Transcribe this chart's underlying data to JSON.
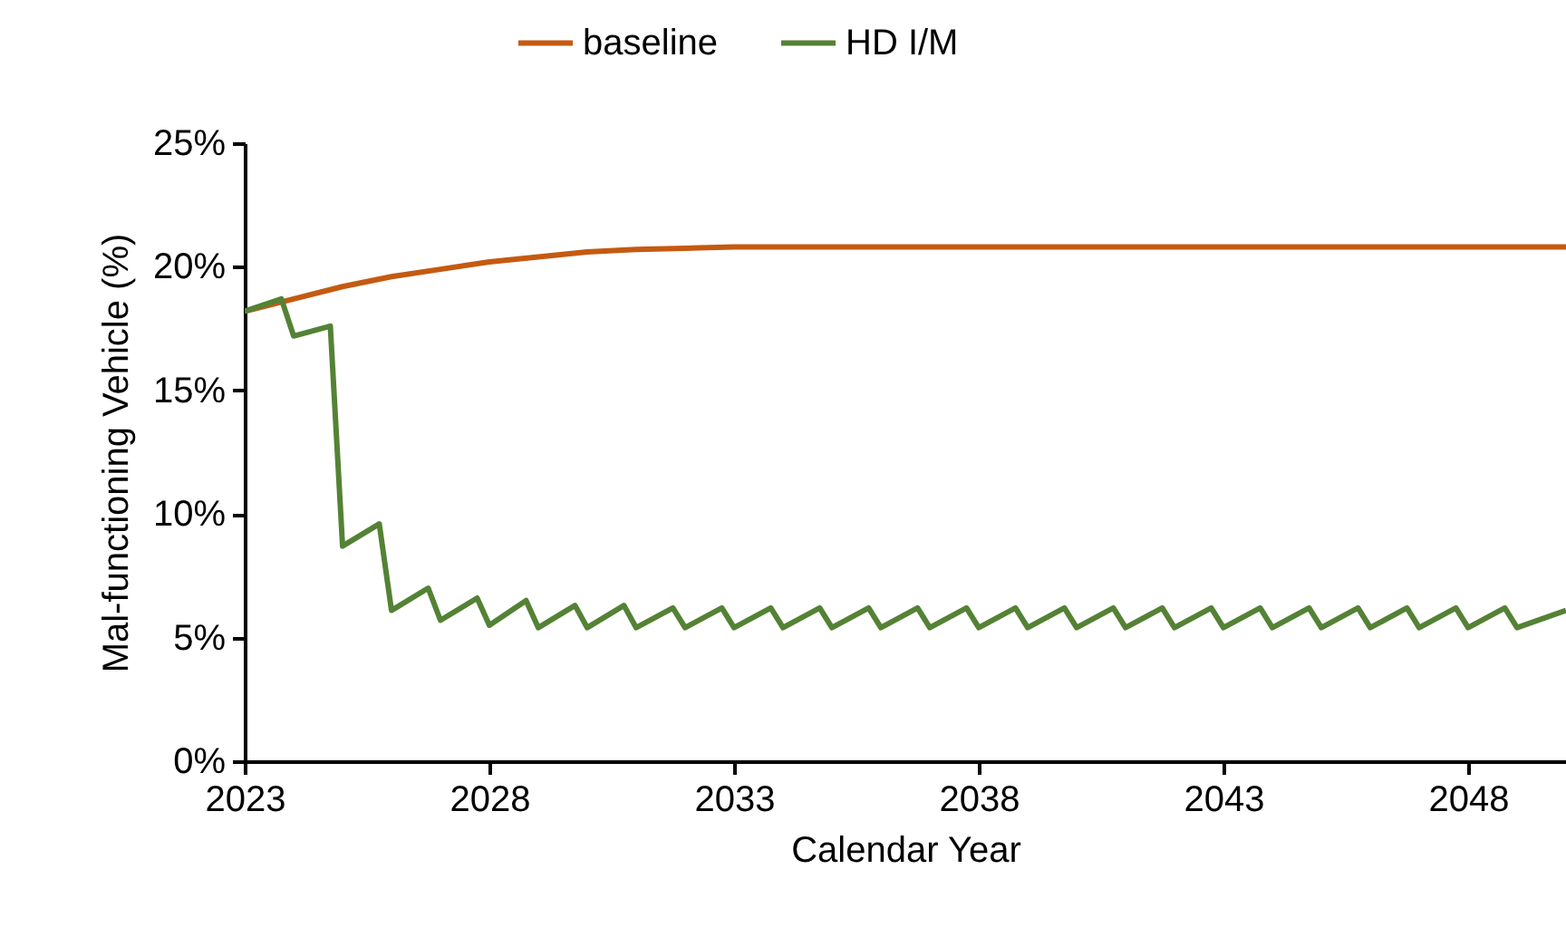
{
  "chart_data": {
    "type": "line",
    "xlabel": "Calendar Year",
    "ylabel": "Mal-functioning Vehicle (%)",
    "xlim": [
      2023,
      2050
    ],
    "xticks": [
      2023,
      2028,
      2033,
      2038,
      2043,
      2048
    ],
    "ylim": [
      0,
      25
    ],
    "yticks": [
      {
        "value": 0,
        "label": "0%"
      },
      {
        "value": 5,
        "label": "5%"
      },
      {
        "value": 10,
        "label": "10%"
      },
      {
        "value": 15,
        "label": "15%"
      },
      {
        "value": 20,
        "label": "20%"
      },
      {
        "value": 25,
        "label": "25%"
      }
    ],
    "grid": false,
    "legend": "top",
    "marker": "none",
    "line_style": "solid",
    "series": [
      {
        "name": "baseline",
        "color": "#c55a11",
        "x": [
          2023,
          2024,
          2025,
          2026,
          2027,
          2028,
          2029,
          2030,
          2031,
          2032,
          2033,
          2038,
          2043,
          2048,
          2050
        ],
        "values": [
          18.2,
          18.7,
          19.2,
          19.6,
          19.9,
          20.2,
          20.4,
          20.6,
          20.7,
          20.75,
          20.8,
          20.8,
          20.8,
          20.8,
          20.8
        ]
      },
      {
        "name": "HD I/M",
        "color": "#548235",
        "x": [
          2023,
          2023.75,
          2024,
          2024.75,
          2025,
          2025.75,
          2026,
          2026.75,
          2027,
          2027.75,
          2028,
          2028.75,
          2029,
          2029.75,
          2030,
          2030.75,
          2031,
          2031.75,
          2032,
          2032.75,
          2033,
          2033.75,
          2034,
          2034.75,
          2035,
          2035.75,
          2036,
          2036.75,
          2037,
          2037.75,
          2038,
          2038.75,
          2039,
          2039.75,
          2040,
          2040.75,
          2041,
          2041.75,
          2042,
          2042.75,
          2043,
          2043.75,
          2044,
          2044.75,
          2045,
          2045.75,
          2046,
          2046.75,
          2047,
          2047.75,
          2048,
          2048.75,
          2049,
          2050
        ],
        "values": [
          18.2,
          18.7,
          17.2,
          17.6,
          8.7,
          9.6,
          6.1,
          7.0,
          5.7,
          6.6,
          5.5,
          6.5,
          5.4,
          6.3,
          5.4,
          6.3,
          5.4,
          6.2,
          5.4,
          6.2,
          5.4,
          6.2,
          5.4,
          6.2,
          5.4,
          6.2,
          5.4,
          6.2,
          5.4,
          6.2,
          5.4,
          6.2,
          5.4,
          6.2,
          5.4,
          6.2,
          5.4,
          6.2,
          5.4,
          6.2,
          5.4,
          6.2,
          5.4,
          6.2,
          5.4,
          6.2,
          5.4,
          6.2,
          5.4,
          6.2,
          5.4,
          6.2,
          5.4,
          6.1
        ]
      }
    ]
  }
}
